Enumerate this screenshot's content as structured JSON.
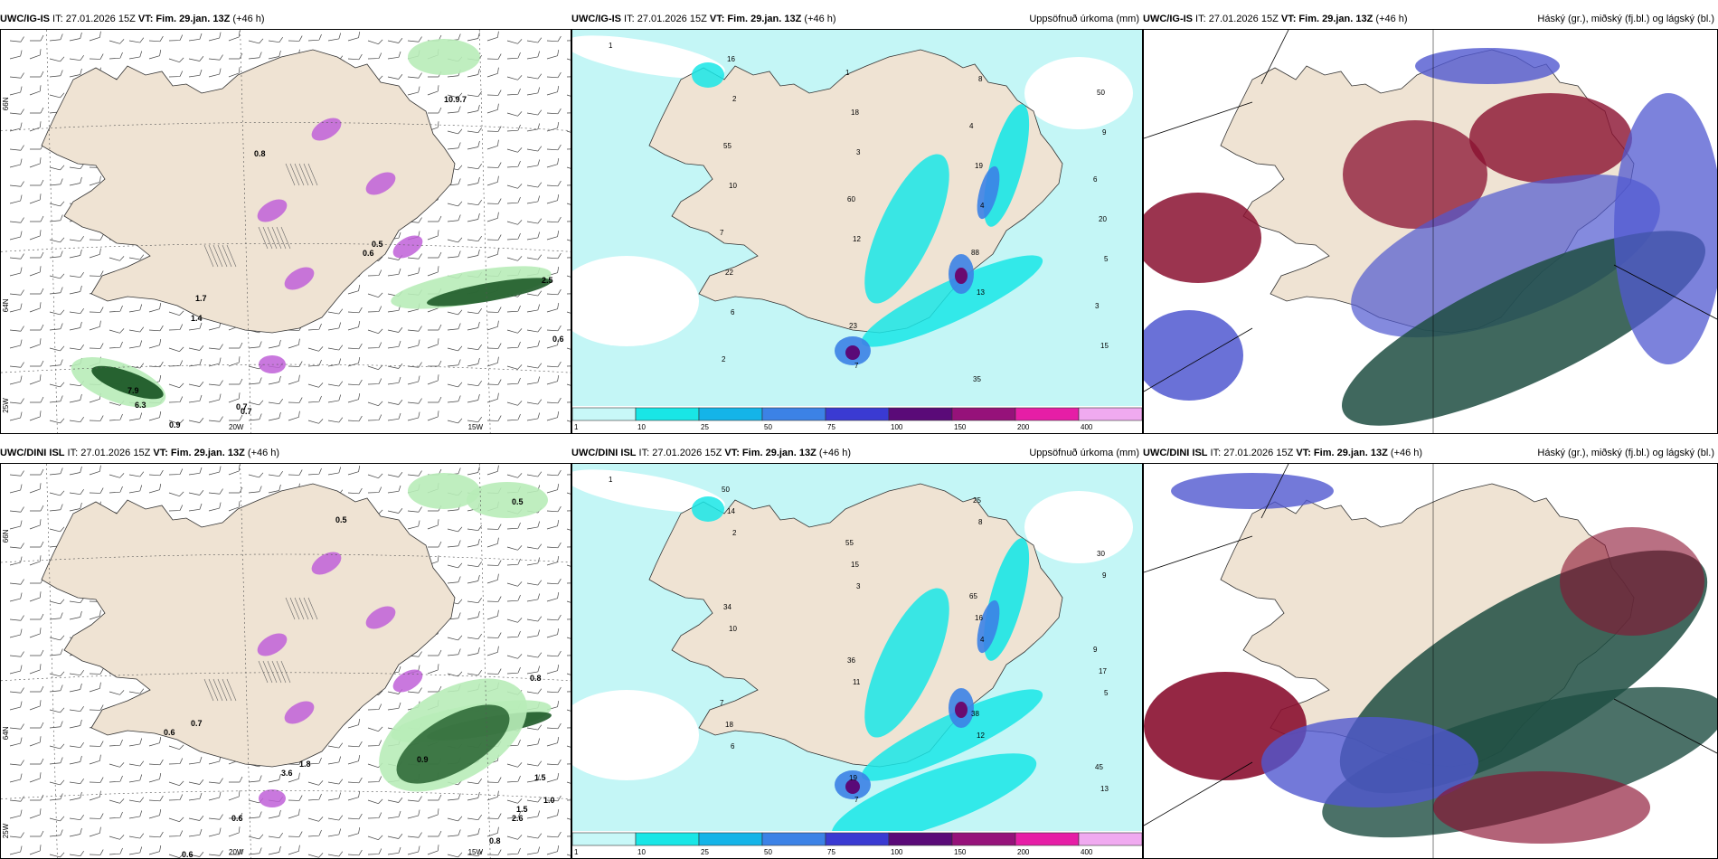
{
  "panels": [
    {
      "id": "p1",
      "model": "UWC/IG-IS",
      "init": " IT: 27.01.2026 15Z ",
      "vt_label": "VT:",
      "vt": " Fim. 29.jan. 13Z",
      "lead": " (+46 h)",
      "title_right": ""
    },
    {
      "id": "p2",
      "model": "UWC/IG-IS",
      "init": " IT: 27.01.2026 15Z ",
      "vt_label": "VT:",
      "vt": " Fim. 29.jan. 13Z",
      "lead": " (+46 h)",
      "title_right": "Uppsöfnuð úrkoma (mm)"
    },
    {
      "id": "p3",
      "model": "UWC/IG-IS",
      "init": " IT: 27.01.2026 15Z ",
      "vt_label": "VT:",
      "vt": " Fim. 29.jan. 13Z",
      "lead": " (+46 h)",
      "title_right": "Háský (gr.), miðský (fj.bl.) og lágský (bl.)"
    },
    {
      "id": "p4",
      "model": "UWC/DINI ISL",
      "init": " IT: 27.01.2026 15Z ",
      "vt_label": "VT:",
      "vt": " Fim. 29.jan. 13Z",
      "lead": " (+46 h)",
      "title_right": ""
    },
    {
      "id": "p5",
      "model": "UWC/DINI ISL",
      "init": " IT: 27.01.2026 15Z ",
      "vt_label": "VT:",
      "vt": " Fim. 29.jan. 13Z",
      "lead": " (+46 h)",
      "title_right": "Uppsöfnuð úrkoma (mm)"
    },
    {
      "id": "p6",
      "model": "UWC/DINI ISL",
      "init": " IT: 27.01.2026 15Z ",
      "vt_label": "VT:",
      "vt": " Fim. 29.jan. 13Z",
      "lead": " (+46 h)",
      "title_right": "Háský (gr.), miðský (fj.bl.) og lágský (bl.)"
    }
  ],
  "axes": {
    "lon_20w": "20W",
    "lon_15w": "15W",
    "lat_66n": "66N",
    "lat_64n": "64N",
    "lat_25w": "25W"
  },
  "legend": {
    "ticks": [
      "1",
      "10",
      "25",
      "50",
      "75",
      "100",
      "150",
      "200",
      "400"
    ],
    "colors": [
      "#c8f8f8",
      "#19e6e6",
      "#14b4e8",
      "#3c82e6",
      "#3a3ad2",
      "#5a0a78",
      "#96127a",
      "#e61ea6",
      "#f0aaf0"
    ]
  },
  "p1_labels": [
    "0.8",
    "0.7",
    "1.7",
    "1.4",
    "7.9",
    "6.3",
    "0.9",
    "0.7",
    "2.5",
    "0.6",
    "10.9.7",
    "0.5",
    "0.6"
  ],
  "p4_labels": [
    "0.5",
    "0.5",
    "0.7",
    "0.6",
    "0.6",
    "0.8",
    "1.0",
    "1.5",
    "2.6",
    "0.8",
    "1.5",
    "0.9",
    "1.8",
    "3.6",
    "0.6"
  ],
  "p2_labels": [
    "1",
    "2",
    "3",
    "4",
    "5",
    "6",
    "7",
    "8",
    "9",
    "10",
    "12",
    "13",
    "15",
    "16",
    "18",
    "19",
    "20",
    "22",
    "23",
    "35",
    "50",
    "55",
    "60",
    "88",
    "3",
    "2",
    "1",
    "4",
    "6",
    "7"
  ],
  "p5_labels": [
    "1",
    "2",
    "3",
    "4",
    "5",
    "6",
    "7",
    "8",
    "9",
    "10",
    "11",
    "12",
    "13",
    "14",
    "15",
    "16",
    "17",
    "18",
    "19",
    "25",
    "30",
    "34",
    "36",
    "38",
    "45",
    "50",
    "55",
    "65",
    "9",
    "7"
  ],
  "colors": {
    "land": "#efe3d3",
    "sea_light": "#c4f6f6",
    "cyan": "#19e6e6",
    "blue": "#3c82e6",
    "purple": "#c060d8",
    "green_light": "#b8ecb8",
    "green_dark": "#1e5a28",
    "cloud_dark": "#1e4e42",
    "cloud_red": "#8a1030",
    "cloud_blue": "#5058d0"
  }
}
